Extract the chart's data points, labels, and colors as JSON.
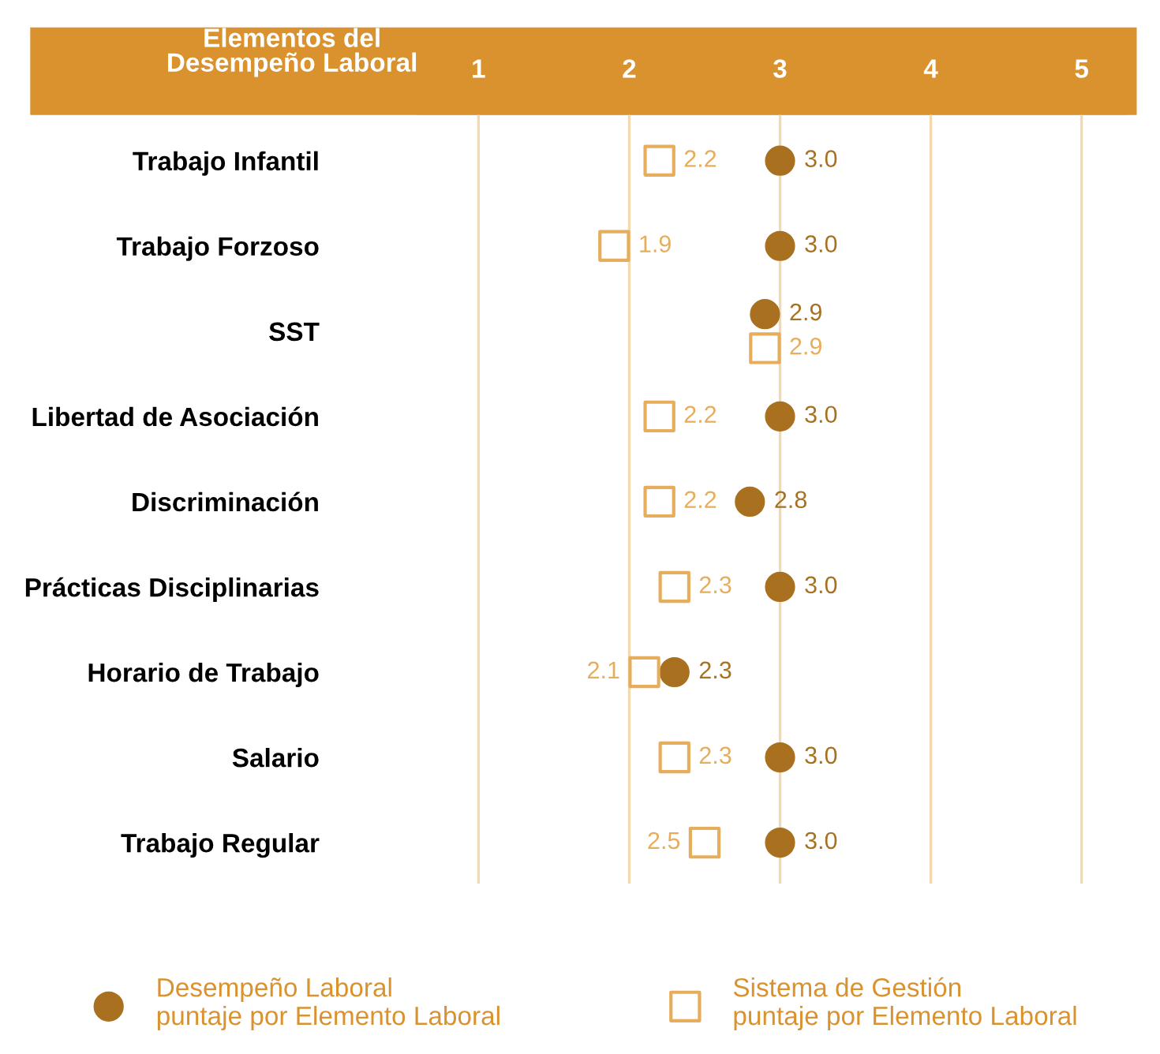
{
  "chart_data": {
    "type": "scatter",
    "xlabel": "Elementos del\nDesempeño Laboral",
    "categories": [
      "Trabajo Infantil",
      "Trabajo Forzoso",
      "SST",
      "Libertad de Asociación",
      "Discriminación",
      "Prácticas Disciplinarias",
      "Horario de Trabajo",
      "Salario",
      "Trabajo Regular"
    ],
    "series": [
      {
        "name": "Desempeño Laboral\npuntaje por Elemento Laboral",
        "color": "#a8701f",
        "marker": "circle",
        "values": [
          3.0,
          3.0,
          2.9,
          3.0,
          2.8,
          3.0,
          2.3,
          3.0,
          3.0
        ],
        "value_labels": [
          "3.0",
          "3.0",
          "2.9",
          "3.0",
          "2.8",
          "3.0",
          "2.3",
          "3.0",
          "3.0"
        ]
      },
      {
        "name": "Sistema de Gestión\npuntaje por Elemento Laboral",
        "color": "#e6ad5c",
        "marker": "square",
        "values": [
          2.2,
          1.9,
          2.9,
          2.2,
          2.2,
          2.3,
          2.1,
          2.3,
          2.5
        ],
        "value_labels": [
          "2.2",
          "1.9",
          "2.9",
          "2.2",
          "2.2",
          "2.3",
          "2.1",
          "2.3",
          "2.5"
        ]
      }
    ],
    "xlim": [
      0.6,
      5.3
    ],
    "xticks": [
      1,
      2,
      3,
      4,
      5
    ],
    "grid": "x",
    "legend": "bottom",
    "orientation": "horizontal"
  }
}
